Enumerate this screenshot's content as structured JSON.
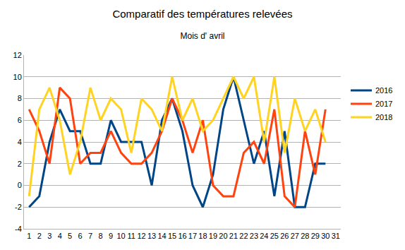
{
  "chart_data": {
    "type": "line",
    "title": "Comparatif des températures relevées",
    "subtitle": "Mois d' avril",
    "categories": [
      "1",
      "2",
      "3",
      "4",
      "5",
      "6",
      "7",
      "8",
      "9",
      "10",
      "11",
      "12",
      "13",
      "14",
      "15",
      "16",
      "17",
      "18",
      "19",
      "20",
      "21",
      "22",
      "23",
      "24",
      "25",
      "26",
      "27",
      "28",
      "29",
      "30",
      "31"
    ],
    "series": [
      {
        "name": "2016",
        "color": "#004586",
        "values": [
          -2,
          -1,
          4,
          7,
          5,
          5,
          2,
          2,
          6,
          4,
          4,
          4,
          0,
          6,
          8,
          5,
          0,
          -2,
          1,
          7,
          10,
          6,
          2,
          5,
          -1,
          5,
          -2,
          -2,
          2,
          2,
          null
        ]
      },
      {
        "name": "2017",
        "color": "#ff420e",
        "values": [
          7,
          5,
          2,
          9,
          8,
          2,
          3,
          3,
          5,
          3,
          2,
          2,
          3,
          5,
          8,
          6,
          3,
          6,
          0,
          -1,
          -1,
          3,
          4,
          2,
          7,
          -1,
          -2,
          5,
          1,
          7,
          null
        ]
      },
      {
        "name": "2018",
        "color": "#ffd320",
        "values": [
          -1,
          7,
          9,
          6,
          1,
          4,
          9,
          6,
          8,
          7,
          3,
          8,
          7,
          5,
          10,
          6,
          8,
          5,
          6,
          8,
          10,
          8,
          10,
          4,
          10,
          3,
          8,
          5,
          7,
          4,
          null
        ]
      }
    ],
    "ylim": [
      -4,
      12
    ],
    "yticks": [
      -4,
      -2,
      0,
      2,
      4,
      6,
      8,
      10,
      12
    ],
    "grid": true,
    "legend": "right"
  }
}
